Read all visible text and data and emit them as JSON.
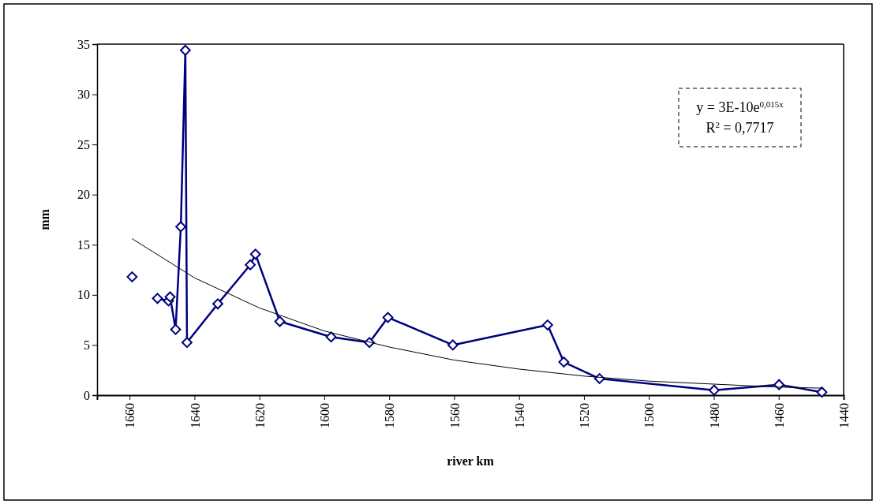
{
  "chart_data": {
    "type": "line",
    "xlabel": "river km",
    "ylabel": "mm",
    "xlim": [
      1670,
      1440
    ],
    "xticks": [
      1660,
      1640,
      1620,
      1600,
      1580,
      1560,
      1540,
      1520,
      1500,
      1480,
      1460,
      1440
    ],
    "ylim": [
      0,
      35
    ],
    "yticks": [
      0,
      5,
      10,
      15,
      20,
      25,
      30,
      35
    ],
    "marker": "diamond",
    "grid": false,
    "series": [
      {
        "type": "scatter",
        "color": "#000080",
        "x": [
          1659.2
        ],
        "values": [
          11.8
        ]
      },
      {
        "type": "line",
        "color": "#000080",
        "x": [
          1651.4,
          1648,
          1647.5,
          1645.8,
          1644.2,
          1642.8,
          1642.3,
          1632.8,
          1622.8,
          1621.2,
          1613.7,
          1597.9,
          1586.1,
          1580.4,
          1560.4,
          1531.2,
          1526.2,
          1515.2,
          1479.9,
          1459.9,
          1446.7
        ],
        "values": [
          9.65,
          9.4,
          9.8,
          6.55,
          16.8,
          34.4,
          5.25,
          9.1,
          13.0,
          14.05,
          7.35,
          5.8,
          5.25,
          7.75,
          5.0,
          7.0,
          3.3,
          1.65,
          0.5,
          1.05,
          0.3
        ]
      },
      {
        "type": "line",
        "color": "#000000",
        "marker": "none",
        "x": [
          1659.2,
          1640,
          1620,
          1600,
          1580,
          1560,
          1540,
          1520,
          1500,
          1480,
          1460,
          1446.7
        ],
        "values": [
          15.6,
          11.7,
          8.7,
          6.4,
          4.8,
          3.5,
          2.6,
          1.9,
          1.4,
          1.1,
          0.8,
          0.7
        ]
      }
    ],
    "annotations": [
      "y = 3E-10e$^{0,015x}$",
      "R$^{2}$ = 0,7717"
    ]
  }
}
